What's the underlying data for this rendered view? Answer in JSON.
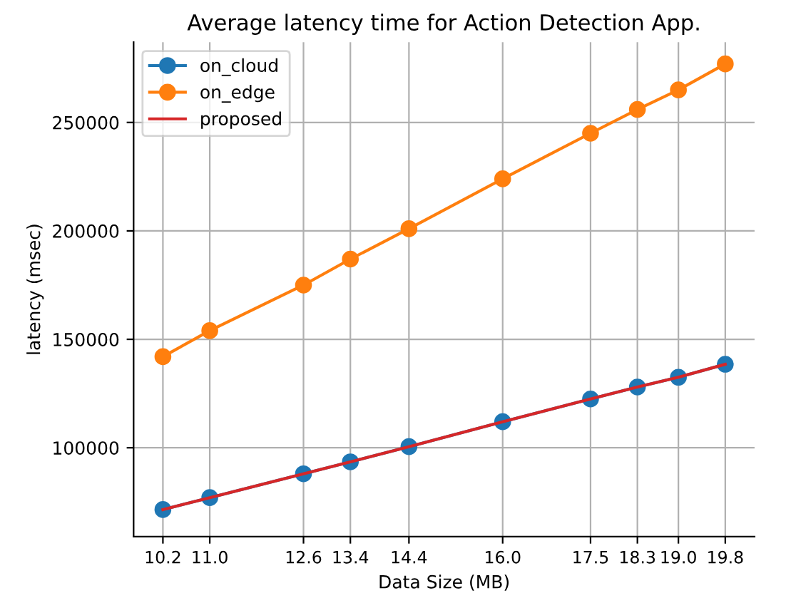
{
  "chart_data": {
    "type": "line",
    "title": "Average latency time for Action Detection App.",
    "xlabel": "Data Size (MB)",
    "ylabel": "latency (msec)",
    "x": [
      10.2,
      11.0,
      12.6,
      13.4,
      14.4,
      16.0,
      17.5,
      18.3,
      19.0,
      19.8
    ],
    "series": [
      {
        "name": "on_cloud",
        "color": "#1f77b4",
        "marker": "circle",
        "values": [
          71500,
          77000,
          88000,
          93500,
          100500,
          112000,
          122500,
          128000,
          132500,
          138500
        ]
      },
      {
        "name": "on_edge",
        "color": "#ff7f0e",
        "marker": "circle",
        "values": [
          142000,
          154000,
          175000,
          187000,
          201000,
          224000,
          245000,
          256000,
          265000,
          277000
        ]
      },
      {
        "name": "proposed",
        "color": "#d62728",
        "values": [
          71500,
          77000,
          88000,
          93500,
          100500,
          112000,
          122500,
          128000,
          132500,
          138500
        ]
      }
    ],
    "xlim": [
      9.7,
      20.3
    ],
    "ylim": [
      59000,
      287000
    ],
    "xticks": [
      {
        "value": 10.2,
        "label": "10.2"
      },
      {
        "value": 11.0,
        "label": "11.0"
      },
      {
        "value": 12.6,
        "label": "12.6"
      },
      {
        "value": 13.4,
        "label": "13.4"
      },
      {
        "value": 14.4,
        "label": "14.4"
      },
      {
        "value": 16.0,
        "label": "16.0"
      },
      {
        "value": 17.5,
        "label": "17.5"
      },
      {
        "value": 18.3,
        "label": "18.3"
      },
      {
        "value": 19.0,
        "label": "19.0"
      },
      {
        "value": 19.8,
        "label": "19.8"
      }
    ],
    "yticks": [
      100000,
      150000,
      200000,
      250000
    ],
    "grid": true,
    "legend": "top left"
  }
}
